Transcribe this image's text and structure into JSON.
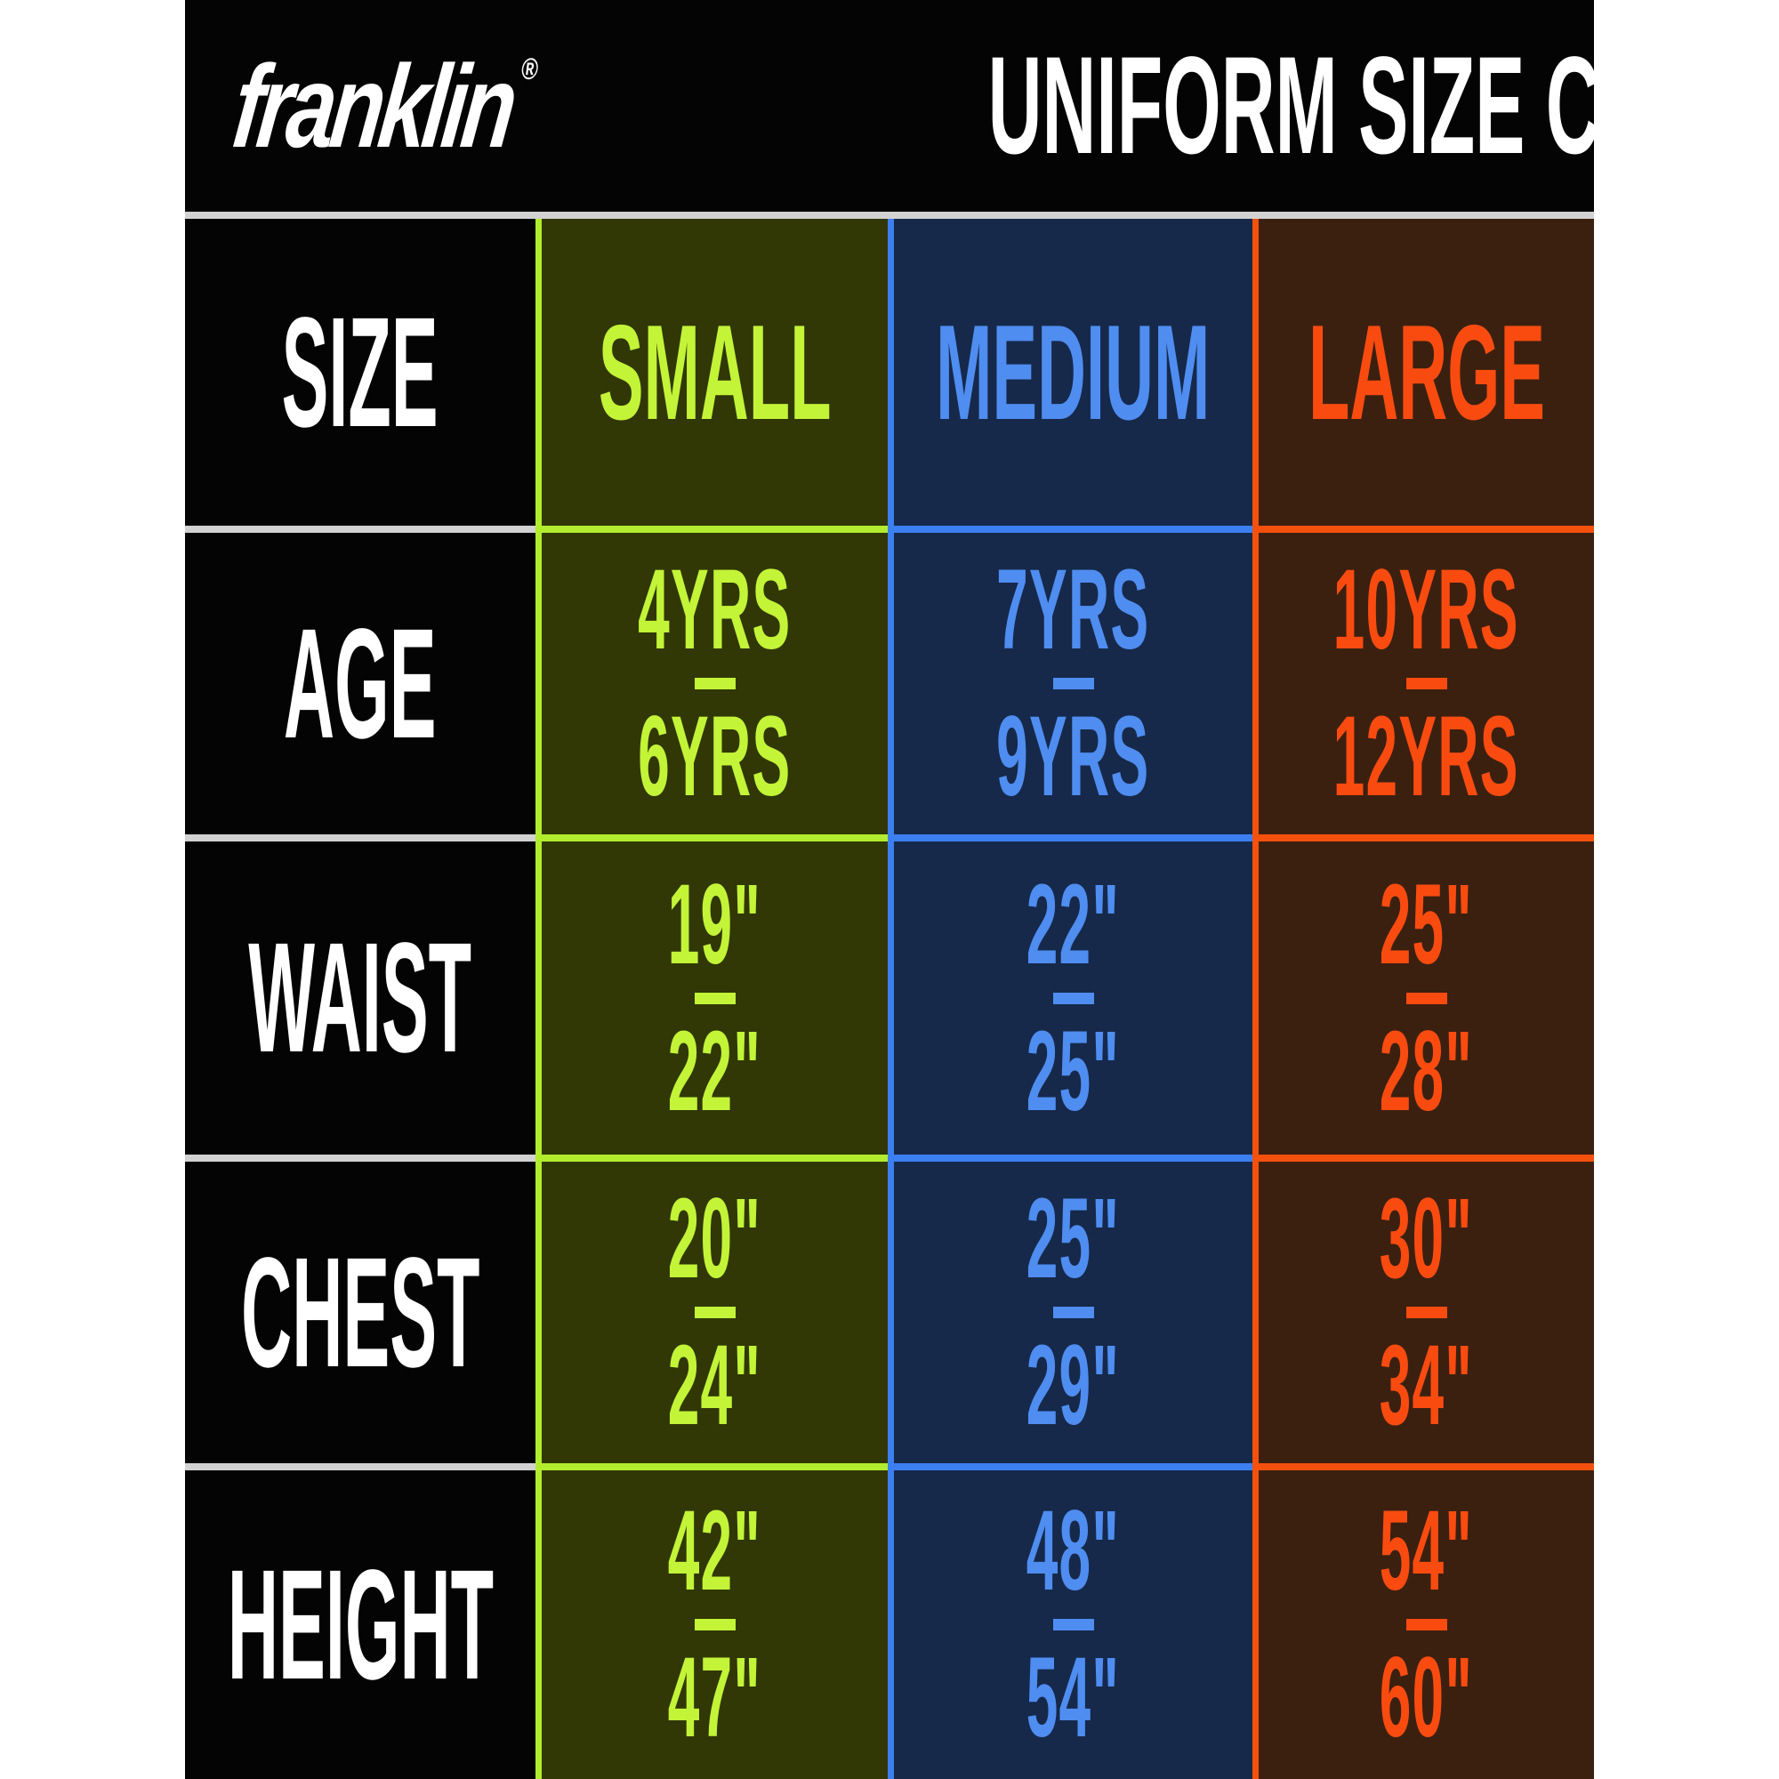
{
  "header": {
    "brand": "franklin",
    "registered": "®",
    "title": "UNIFORM SIZE CHART"
  },
  "table": {
    "corner_label": "SIZE",
    "row_labels": [
      "AGE",
      "WAIST",
      "CHEST",
      "HEIGHT"
    ],
    "columns": [
      {
        "label": "SMALL",
        "cells": [
          {
            "from": "4YRS",
            "sep": "-",
            "to": "6YRS"
          },
          {
            "from": "19\"",
            "sep": "-",
            "to": "22\""
          },
          {
            "from": "20\"",
            "sep": "-",
            "to": "24\""
          },
          {
            "from": "42\"",
            "sep": "-",
            "to": "47\""
          }
        ]
      },
      {
        "label": "MEDIUM",
        "cells": [
          {
            "from": "7YRS",
            "sep": "-",
            "to": "9YRS"
          },
          {
            "from": "22\"",
            "sep": "-",
            "to": "25\""
          },
          {
            "from": "25\"",
            "sep": "-",
            "to": "29\""
          },
          {
            "from": "48\"",
            "sep": "-",
            "to": "54\""
          }
        ]
      },
      {
        "label": "LARGE",
        "cells": [
          {
            "from": "10YRS",
            "sep": "-",
            "to": "12YRS"
          },
          {
            "from": "25\"",
            "sep": "-",
            "to": "28\""
          },
          {
            "from": "30\"",
            "sep": "-",
            "to": "34\""
          },
          {
            "from": "54\"",
            "sep": "-",
            "to": "60\""
          }
        ]
      }
    ]
  },
  "colors": {
    "page_margin": "#ffffff",
    "header_bg": "#040404",
    "label_column_bg": "#040404",
    "label_text": "#ffffff",
    "separator_gray": "#d2d2d2",
    "small_bg": "#313806",
    "small_accent": "#b2ec2e",
    "small_text": "#c3f438",
    "medium_bg": "#16294b",
    "medium_accent": "#3c7ff0",
    "medium_text": "#4f8df0",
    "large_bg": "#3b2010",
    "large_accent": "#f4500e",
    "large_text": "#f94b10"
  },
  "chart_data": {
    "type": "table",
    "title": "UNIFORM SIZE CHART",
    "columns": [
      "SIZE",
      "SMALL",
      "MEDIUM",
      "LARGE"
    ],
    "rows": [
      [
        "AGE",
        "4YRS - 6YRS",
        "7YRS - 9YRS",
        "10YRS - 12YRS"
      ],
      [
        "WAIST",
        "19\" - 22\"",
        "22\" - 25\"",
        "25\" - 28\""
      ],
      [
        "CHEST",
        "20\" - 24\"",
        "25\" - 29\"",
        "30\" - 34\""
      ],
      [
        "HEIGHT",
        "42\" - 47\"",
        "48\" - 54\"",
        "54\" - 60\""
      ]
    ],
    "legend_position": "none",
    "grid": true
  }
}
